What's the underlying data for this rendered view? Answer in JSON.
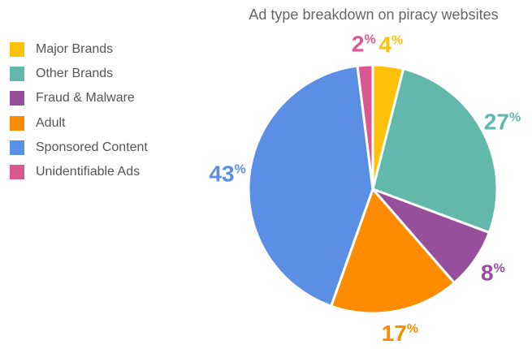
{
  "chart_data": {
    "type": "pie",
    "title": "Ad type breakdown on piracy websites",
    "slices": [
      {
        "name": "Major Brands",
        "value": 4,
        "color": "#FFC107",
        "label_value": "4",
        "label_unit": "%"
      },
      {
        "name": "Other Brands",
        "value": 27,
        "color": "#63B8AC",
        "label_value": "27",
        "label_unit": "%"
      },
      {
        "name": "Fraud & Malware",
        "value": 8,
        "color": "#954F9B",
        "label_value": "8",
        "label_unit": "%"
      },
      {
        "name": "Adult",
        "value": 17,
        "color": "#FF8C00",
        "label_value": "17",
        "label_unit": "%"
      },
      {
        "name": "Sponsored Content",
        "value": 43,
        "color": "#5B8FE6",
        "label_value": "43",
        "label_unit": "%"
      },
      {
        "name": "Unidentifiable Ads",
        "value": 2,
        "color": "#D9588F",
        "label_value": "2",
        "label_unit": "%"
      }
    ],
    "legend_position": "left"
  }
}
